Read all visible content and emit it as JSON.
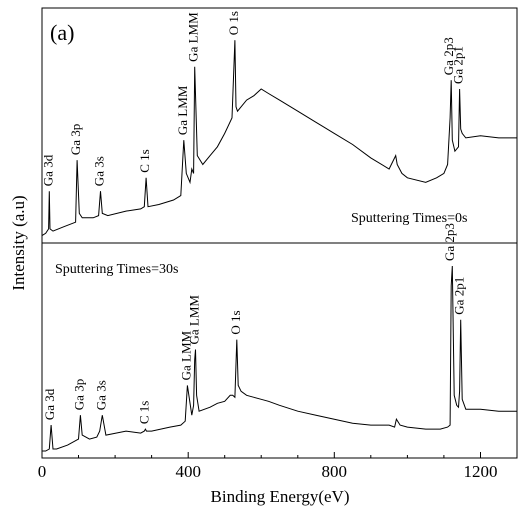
{
  "chart_data": {
    "type": "line",
    "panel_label": "(a)",
    "xlabel": "Binding Energy(eV)",
    "ylabel": "Intensity (a.u)",
    "xlim": [
      0,
      1300
    ],
    "x_ticks": [
      "0",
      "400",
      "800",
      "1200"
    ],
    "grid": false,
    "panels": [
      {
        "annotation": "Sputtering Times=0s",
        "series": [
          {
            "x": [
              0,
              10,
              18,
              20,
              22,
              30,
              60,
              92,
              96,
              102,
              110,
              140,
              155,
              160,
              165,
              180,
              230,
              270,
              280,
              285,
              290,
              320,
              360,
              380,
              388,
              395,
              405,
              410,
              415,
              418,
              425,
              440,
              460,
              480,
              500,
              520,
              528,
              531,
              535,
              545,
              560,
              580,
              600,
              620,
              650,
              700,
              750,
              800,
              850,
              900,
              950,
              968,
              972,
              985,
              1000,
              1050,
              1080,
              1100,
              1110,
              1117,
              1120,
              1123,
              1130,
              1140,
              1143,
              1146,
              1150,
              1160,
              1200,
              1250,
              1300
            ],
            "y": [
              0.02,
              0.03,
              0.05,
              0.22,
              0.05,
              0.04,
              0.06,
              0.08,
              0.36,
              0.12,
              0.1,
              0.1,
              0.11,
              0.22,
              0.12,
              0.11,
              0.13,
              0.14,
              0.15,
              0.28,
              0.15,
              0.16,
              0.18,
              0.2,
              0.45,
              0.3,
              0.26,
              0.32,
              0.3,
              0.78,
              0.38,
              0.34,
              0.38,
              0.42,
              0.48,
              0.55,
              0.9,
              0.6,
              0.58,
              0.6,
              0.63,
              0.65,
              0.68,
              0.66,
              0.63,
              0.58,
              0.53,
              0.48,
              0.43,
              0.37,
              0.32,
              0.38,
              0.34,
              0.3,
              0.28,
              0.26,
              0.28,
              0.3,
              0.34,
              0.55,
              0.72,
              0.45,
              0.4,
              0.42,
              0.68,
              0.5,
              0.48,
              0.46,
              0.47,
              0.46,
              0.46
            ]
          }
        ],
        "peak_labels": [
          {
            "text": "Ga 3d",
            "x": 20,
            "y": 0.22
          },
          {
            "text": "Ga 3p",
            "x": 96,
            "y": 0.36
          },
          {
            "text": "Ga 3s",
            "x": 160,
            "y": 0.22
          },
          {
            "text": "C 1s",
            "x": 285,
            "y": 0.28
          },
          {
            "text": "Ga LMM",
            "x": 388,
            "y": 0.45
          },
          {
            "text": "Ga LMM",
            "x": 418,
            "y": 0.78
          },
          {
            "text": "O 1s",
            "x": 528,
            "y": 0.9
          },
          {
            "text": "Ga 2p3",
            "x": 1117,
            "y": 0.72
          },
          {
            "text": "Ga 2p1",
            "x": 1143,
            "y": 0.68
          }
        ]
      },
      {
        "annotation": "Sputtering Times=30s",
        "series": [
          {
            "x": [
              0,
              10,
              20,
              25,
              30,
              40,
              70,
              100,
              105,
              110,
              130,
              150,
              158,
              165,
              175,
              230,
              270,
              280,
              283,
              286,
              300,
              350,
              380,
              392,
              398,
              410,
              415,
              418,
              420,
              423,
              430,
              460,
              480,
              500,
              515,
              522,
              528,
              533,
              537,
              545,
              560,
              580,
              600,
              620,
              650,
              700,
              750,
              800,
              850,
              900,
              950,
              965,
              970,
              980,
              1000,
              1050,
              1090,
              1110,
              1117,
              1120,
              1123,
              1128,
              1135,
              1140,
              1143,
              1146,
              1150,
              1160,
              1200,
              1250,
              1300
            ],
            "y": [
              0.02,
              0.02,
              0.03,
              0.15,
              0.03,
              0.03,
              0.05,
              0.08,
              0.2,
              0.1,
              0.08,
              0.09,
              0.12,
              0.2,
              0.1,
              0.12,
              0.11,
              0.12,
              0.13,
              0.12,
              0.12,
              0.14,
              0.15,
              0.17,
              0.35,
              0.2,
              0.25,
              0.48,
              0.53,
              0.3,
              0.22,
              0.24,
              0.26,
              0.27,
              0.3,
              0.3,
              0.29,
              0.58,
              0.35,
              0.32,
              0.3,
              0.29,
              0.28,
              0.27,
              0.25,
              0.22,
              0.2,
              0.18,
              0.16,
              0.15,
              0.15,
              0.14,
              0.18,
              0.15,
              0.14,
              0.13,
              0.13,
              0.14,
              0.15,
              0.85,
              0.95,
              0.3,
              0.25,
              0.24,
              0.32,
              0.68,
              0.28,
              0.23,
              0.23,
              0.22,
              0.22
            ]
          }
        ],
        "peak_labels": [
          {
            "text": "Ga 3d",
            "x": 25,
            "y": 0.15
          },
          {
            "text": "Ga 3p",
            "x": 105,
            "y": 0.2
          },
          {
            "text": "Ga 3s",
            "x": 165,
            "y": 0.2
          },
          {
            "text": "C 1s",
            "x": 283,
            "y": 0.13
          },
          {
            "text": "Ga LMM",
            "x": 398,
            "y": 0.35
          },
          {
            "text": "Ga LMM",
            "x": 420,
            "y": 0.53
          },
          {
            "text": "O 1s",
            "x": 533,
            "y": 0.58
          },
          {
            "text": "Ga 2p3",
            "x": 1120,
            "y": 0.95
          },
          {
            "text": "Ga 2p1",
            "x": 1146,
            "y": 0.68
          }
        ]
      }
    ]
  }
}
